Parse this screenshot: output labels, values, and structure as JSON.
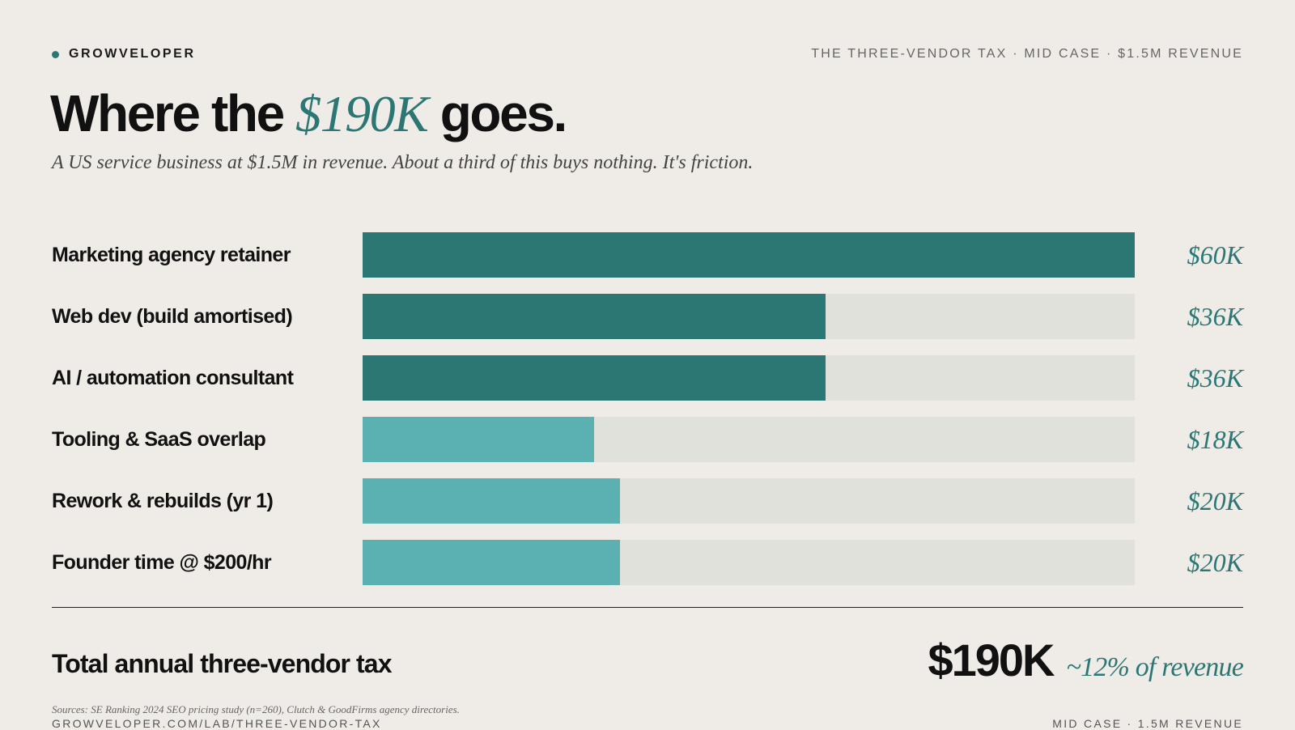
{
  "header": {
    "brand": "GROWVELOPER",
    "context": "THE THREE-VENDOR TAX · MID CASE · $1.5M REVENUE"
  },
  "title": {
    "before": "Where the ",
    "accent": "$190K",
    "after": " goes."
  },
  "subtitle": "A US service business at $1.5M in revenue. About a third of this buys nothing. It's friction.",
  "colors": {
    "primary_teal": "#2c7673",
    "light_teal": "#5bb1b1",
    "track": "#e1e1dc",
    "background": "#efece7"
  },
  "chart_data": {
    "type": "bar",
    "orientation": "horizontal",
    "unit": "$K",
    "xlim": [
      0,
      60
    ],
    "grid": false,
    "categories": [
      "Marketing agency retainer",
      "Web dev (build amortised)",
      "AI / automation consultant",
      "Tooling & SaaS overlap",
      "Rework & rebuilds (yr 1)",
      "Founder time @ $200/hr"
    ],
    "values": [
      60,
      36,
      36,
      18,
      20,
      20
    ],
    "value_labels": [
      "$60K",
      "$36K",
      "$36K",
      "$18K",
      "$20K",
      "$20K"
    ],
    "bar_colors": [
      "primary_teal",
      "primary_teal",
      "primary_teal",
      "light_teal",
      "light_teal",
      "light_teal"
    ]
  },
  "total": {
    "label": "Total annual three-vendor tax",
    "value": "$190K",
    "note": "~12% of revenue"
  },
  "footer": {
    "sources": "Sources: SE Ranking 2024 SEO pricing study (n=260), Clutch & GoodFirms agency directories.",
    "url": "GROWVELOPER.COM/LAB/THREE-VENDOR-TAX",
    "case": "MID CASE · 1.5M REVENUE"
  }
}
